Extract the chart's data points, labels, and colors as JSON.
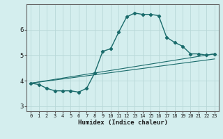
{
  "xlabel": "Humidex (Indice chaleur)",
  "ylabel": "",
  "bg_color": "#d4eeee",
  "line_color": "#1a6b6b",
  "grid_color": "#b8d8d8",
  "xlim": [
    -0.5,
    23.5
  ],
  "ylim": [
    2.8,
    7.0
  ],
  "yticks": [
    3,
    4,
    5,
    6
  ],
  "xticks": [
    0,
    1,
    2,
    3,
    4,
    5,
    6,
    7,
    8,
    9,
    10,
    11,
    12,
    13,
    14,
    15,
    16,
    17,
    18,
    19,
    20,
    21,
    22,
    23
  ],
  "curve1": {
    "x": [
      0,
      1,
      2,
      3,
      4,
      5,
      6,
      7,
      8,
      9,
      10,
      11,
      12,
      13,
      14,
      15,
      16,
      17,
      18,
      19,
      20,
      21,
      22,
      23
    ],
    "y": [
      3.9,
      3.85,
      3.7,
      3.6,
      3.6,
      3.6,
      3.55,
      3.7,
      4.3,
      5.15,
      5.25,
      5.9,
      6.5,
      6.65,
      6.6,
      6.6,
      6.55,
      5.7,
      5.5,
      5.35,
      5.05,
      5.05,
      5.0,
      5.05
    ]
  },
  "curve2": {
    "x": [
      0,
      23
    ],
    "y": [
      3.9,
      5.05
    ]
  },
  "curve3": {
    "x": [
      0,
      23
    ],
    "y": [
      3.9,
      4.85
    ]
  }
}
